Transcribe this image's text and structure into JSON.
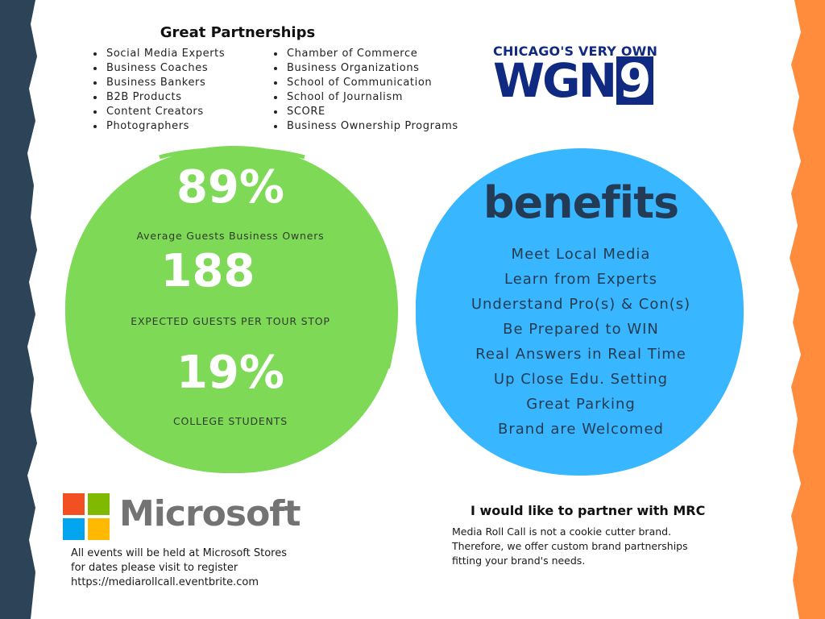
{
  "partnerships": {
    "title": "Great Partnerships",
    "column1": [
      "Social Media Experts",
      "Business Coaches",
      "Business Bankers",
      "B2B Products",
      "Content Creators",
      "Photographers"
    ],
    "column2": [
      "Chamber of Commerce",
      "Business Organizations",
      "School of Communication",
      "School of Journalism",
      "SCORE",
      "Business Ownership Programs"
    ]
  },
  "wgn_logo": {
    "tagline": "CHICAGO'S VERY OWN",
    "letters": "WGN",
    "number": "9"
  },
  "stats": [
    {
      "value": "89%",
      "label": "Average Guests Business Owners"
    },
    {
      "value": "188",
      "label": "EXPECTED GUESTS PER TOUR STOP"
    },
    {
      "value": "19%",
      "label": "COLLEGE STUDENTS"
    }
  ],
  "benefits": {
    "title": "benefits",
    "items": [
      "Meet Local Media",
      "Learn from Experts",
      "Understand Pro(s) & Con(s)",
      "Be Prepared to WIN",
      "Real Answers in Real Time",
      "Up Close Edu. Setting",
      "Great Parking",
      "Brand are Welcomed"
    ]
  },
  "microsoft": {
    "wordmark": "Microsoft",
    "note_lines": [
      "All events will be held at Microsoft Stores",
      "for dates please visit to register",
      "https://mediarollcall.eventbrite.com"
    ]
  },
  "partner_cta": {
    "title": "I would like to partner with MRC",
    "text_lines": [
      "Media Roll Call is not a cookie cutter brand.",
      "Therefore, we offer custom brand partnerships",
      "fitting your brand's needs."
    ]
  },
  "colors": {
    "left_edge": "#2c4358",
    "right_edge": "#ff8c3c",
    "green_circle": "#7ed957",
    "blue_circle": "#38b6ff",
    "wgn_navy": "#0f2a80",
    "ms_red": "#f25022",
    "ms_green": "#7fba00",
    "ms_blue": "#00a4ef",
    "ms_yellow": "#ffb900"
  }
}
